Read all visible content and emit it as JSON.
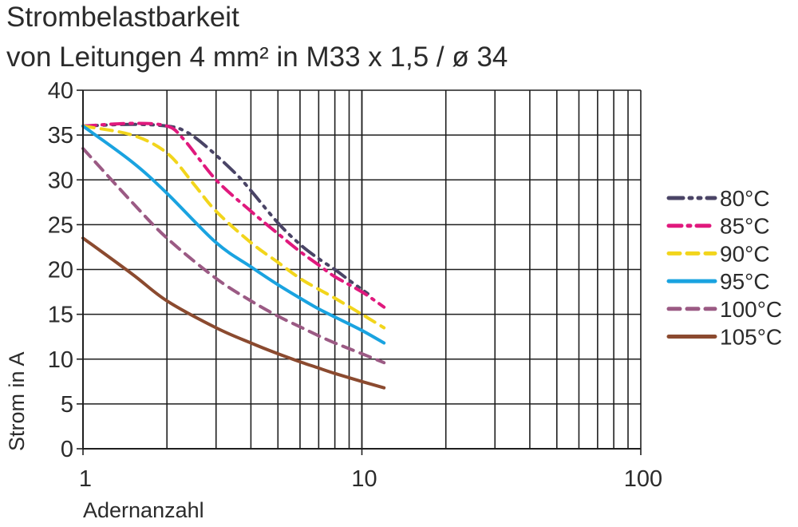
{
  "chart_data": {
    "type": "line",
    "title": "Strombelastbarkeit",
    "subtitle": "von Leitungen 4 mm² in M33 x 1,5 / ø 34",
    "xlabel": "Adernanzahl",
    "ylabel": "Strom in A",
    "x_scale": "log",
    "xlim": [
      1,
      100
    ],
    "ylim": [
      0,
      40
    ],
    "x_ticks": [
      "1",
      "10",
      "100"
    ],
    "y_ticks": [
      "0",
      "5",
      "10",
      "15",
      "20",
      "25",
      "30",
      "35",
      "40"
    ],
    "grid": true,
    "legend_position": "right",
    "series": [
      {
        "name": "80°C",
        "color": "#4a4466",
        "dash": "dash-dot-dot",
        "points": [
          [
            1,
            36
          ],
          [
            1.5,
            36.2
          ],
          [
            2,
            36
          ],
          [
            2.3,
            35.5
          ],
          [
            2.7,
            34
          ],
          [
            3.5,
            30.8
          ],
          [
            4,
            28.8
          ],
          [
            5,
            25.2
          ],
          [
            6,
            22.8
          ],
          [
            7,
            21.2
          ],
          [
            8,
            20
          ],
          [
            9,
            18.8
          ],
          [
            10.5,
            17.3
          ]
        ]
      },
      {
        "name": "85°C",
        "color": "#e0197d",
        "dash": "dash-dot",
        "points": [
          [
            1,
            36
          ],
          [
            1.5,
            36.3
          ],
          [
            2,
            36
          ],
          [
            2.3,
            34.5
          ],
          [
            3,
            30
          ],
          [
            4,
            26.5
          ],
          [
            5,
            24
          ],
          [
            6,
            22
          ],
          [
            7,
            20.5
          ],
          [
            8,
            19.2
          ],
          [
            10,
            17.5
          ],
          [
            12,
            15.8
          ]
        ]
      },
      {
        "name": "90°C",
        "color": "#f2d51c",
        "dash": "dash",
        "points": [
          [
            1,
            36
          ],
          [
            1.5,
            35
          ],
          [
            2,
            33
          ],
          [
            2.5,
            29.5
          ],
          [
            3,
            26.5
          ],
          [
            4,
            23
          ],
          [
            5,
            20.8
          ],
          [
            6,
            19
          ],
          [
            7,
            17.8
          ],
          [
            8,
            16.8
          ],
          [
            10,
            15
          ],
          [
            12,
            13.5
          ]
        ]
      },
      {
        "name": "95°C",
        "color": "#1aa3e0",
        "dash": "solid",
        "points": [
          [
            1,
            36
          ],
          [
            1.5,
            32
          ],
          [
            2,
            28.5
          ],
          [
            3,
            23
          ],
          [
            4,
            20.3
          ],
          [
            5,
            18.3
          ],
          [
            6,
            16.8
          ],
          [
            7,
            15.6
          ],
          [
            8,
            14.7
          ],
          [
            10,
            13.2
          ],
          [
            12,
            11.8
          ]
        ]
      },
      {
        "name": "100°C",
        "color": "#9b5a84",
        "dash": "dash",
        "points": [
          [
            1,
            33.5
          ],
          [
            1.5,
            27.5
          ],
          [
            2,
            23.5
          ],
          [
            3,
            19
          ],
          [
            4,
            16.5
          ],
          [
            5,
            14.8
          ],
          [
            6,
            13.6
          ],
          [
            7,
            12.6
          ],
          [
            8,
            11.8
          ],
          [
            10,
            10.6
          ],
          [
            12,
            9.6
          ]
        ]
      },
      {
        "name": "105°C",
        "color": "#8b4a2f",
        "dash": "solid",
        "points": [
          [
            1,
            23.5
          ],
          [
            1.5,
            19.5
          ],
          [
            2,
            16.5
          ],
          [
            3,
            13.5
          ],
          [
            4,
            11.8
          ],
          [
            5,
            10.6
          ],
          [
            6,
            9.7
          ],
          [
            7,
            9
          ],
          [
            8,
            8.4
          ],
          [
            10,
            7.5
          ],
          [
            12,
            6.8
          ]
        ]
      }
    ]
  }
}
